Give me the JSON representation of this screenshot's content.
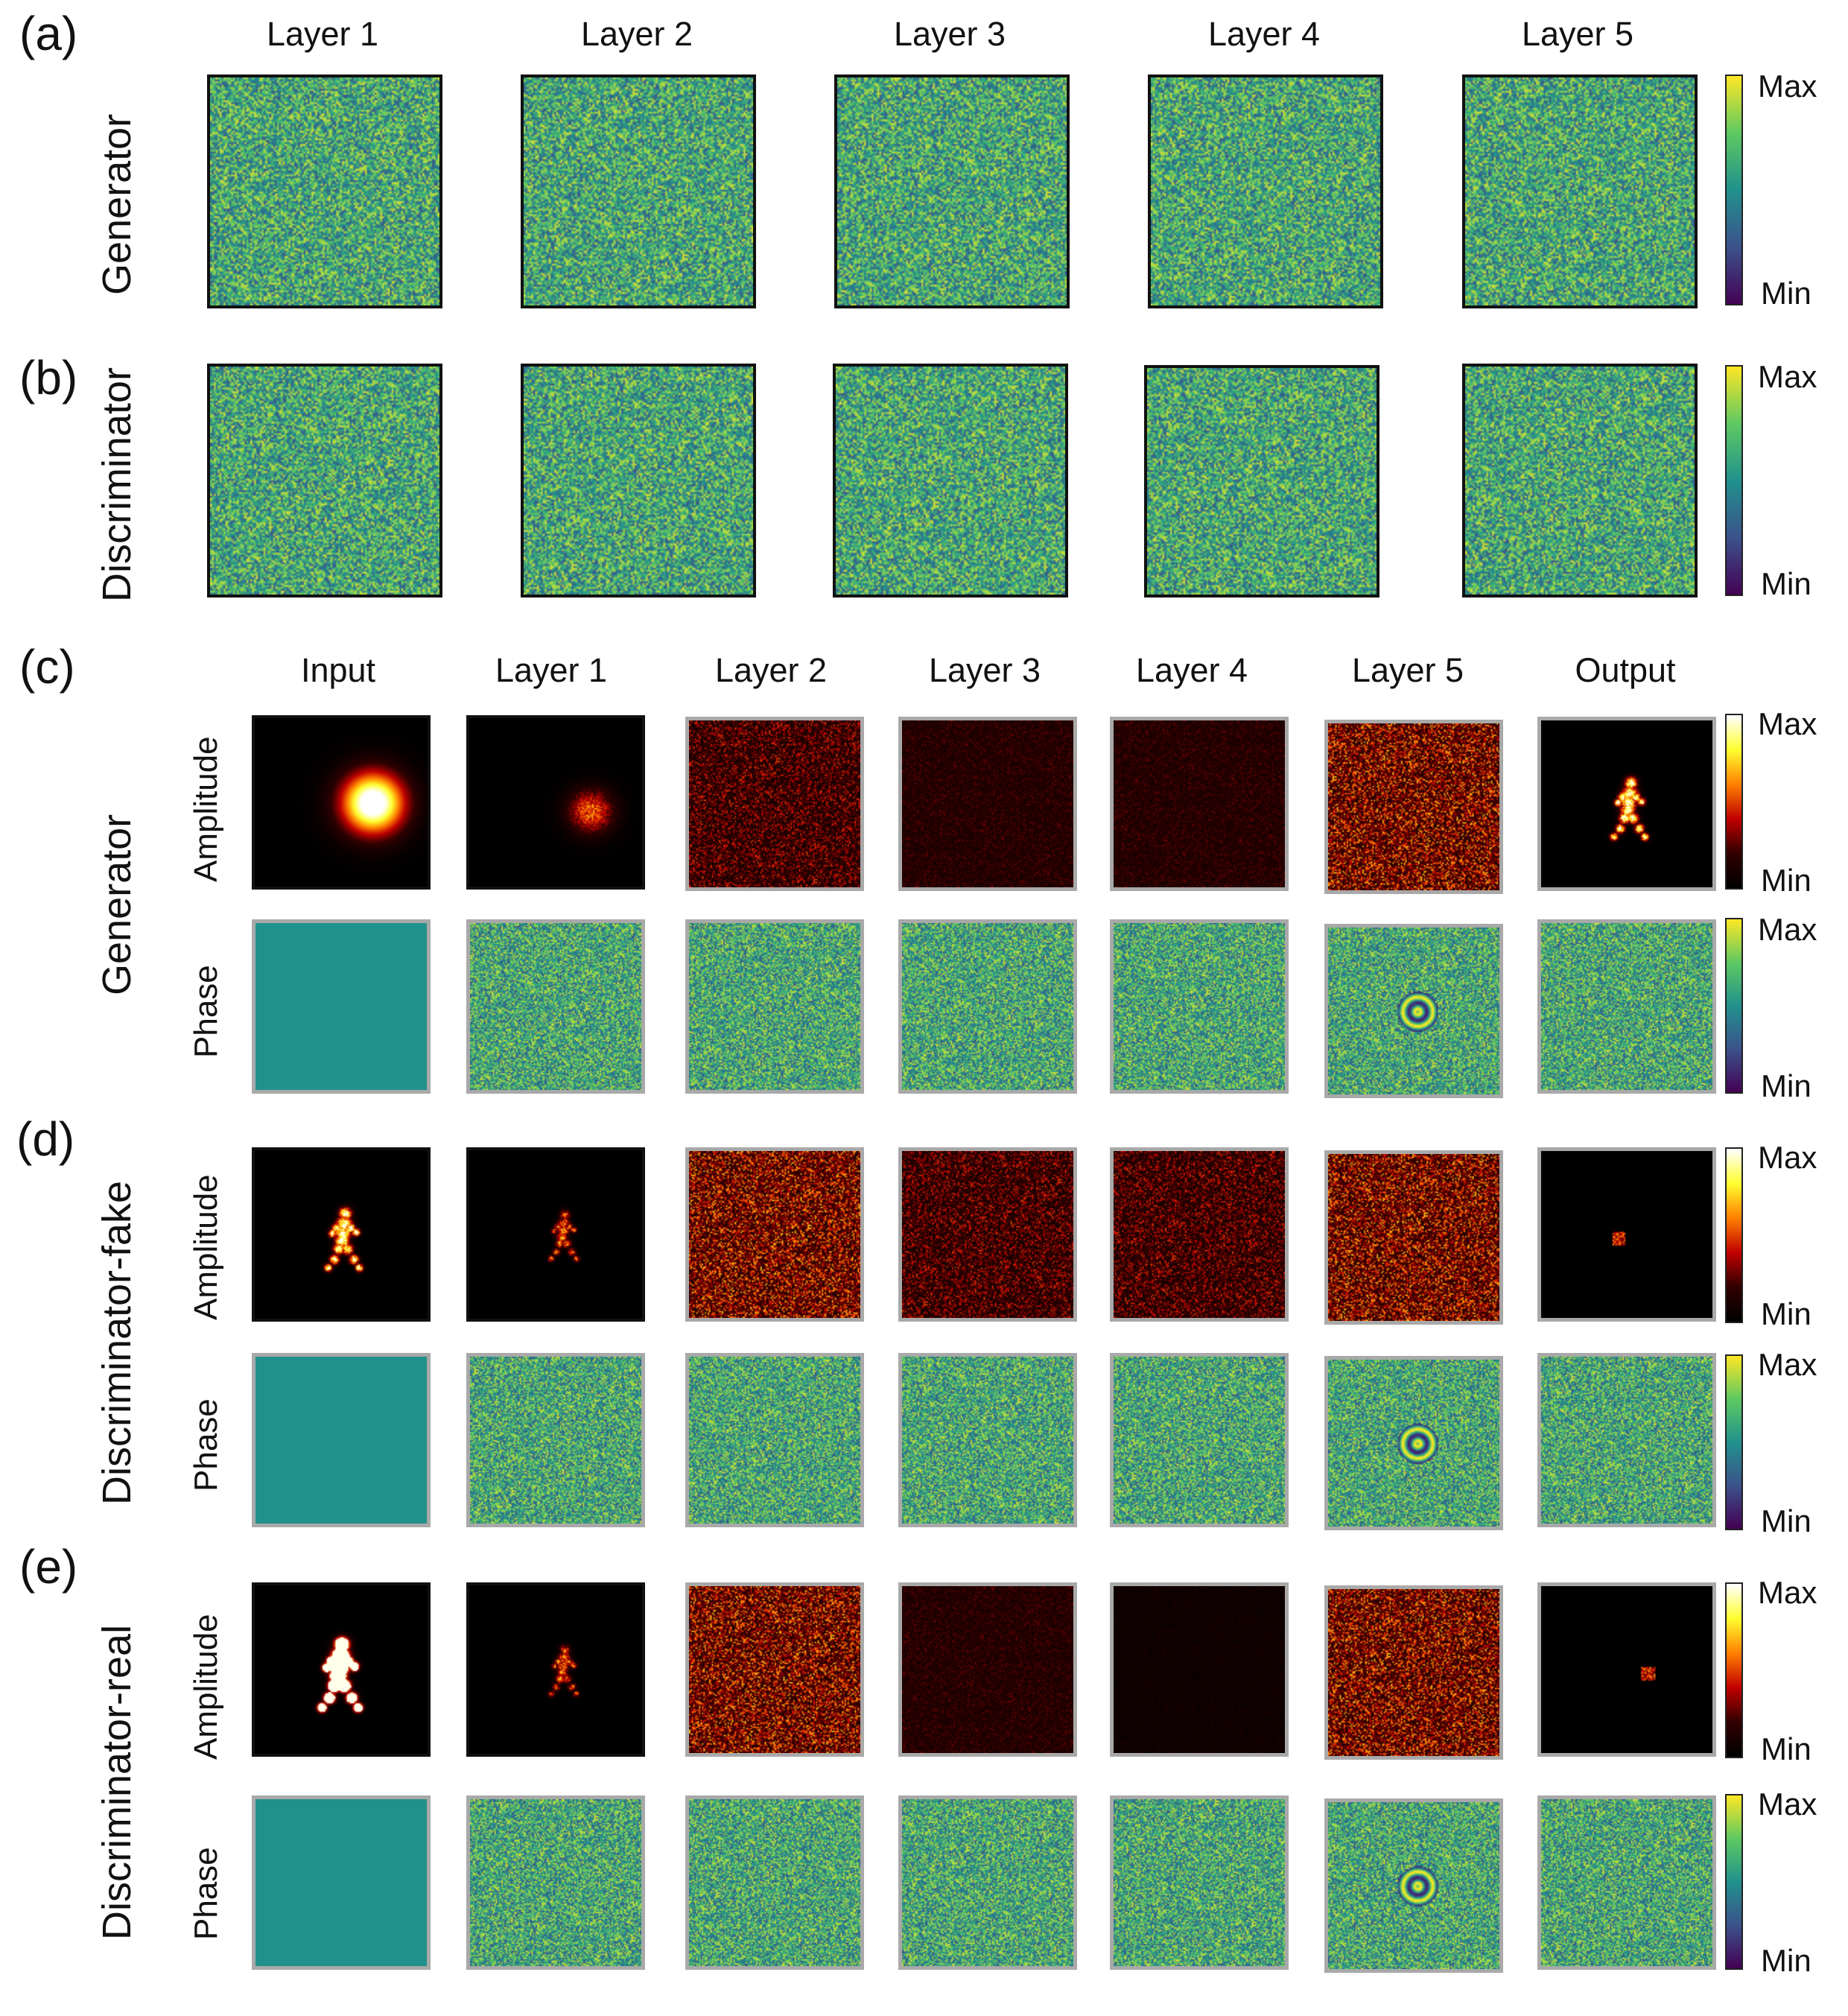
{
  "panels": {
    "a": {
      "label": "(a)",
      "row_label": "Generator"
    },
    "b": {
      "label": "(b)",
      "row_label": "Discriminator"
    },
    "c": {
      "label": "(c)",
      "row_label": "Generator"
    },
    "d": {
      "label": "(d)",
      "row_label": "Discriminator-fake"
    },
    "e": {
      "label": "(e)",
      "row_label": "Discriminator-real"
    }
  },
  "top_columns": [
    "Layer 1",
    "Layer 2",
    "Layer 3",
    "Layer 4",
    "Layer 5"
  ],
  "bottom_columns": [
    "Input",
    "Layer 1",
    "Layer 2",
    "Layer 3",
    "Layer 4",
    "Layer 5",
    "Output"
  ],
  "sub_rows": {
    "amplitude": "Amplitude",
    "phase": "Phase"
  },
  "colorbar": {
    "max": "Max",
    "min": "Min"
  },
  "colormaps": {
    "phase": [
      "#440154",
      "#3b528b",
      "#21918c",
      "#5ec962",
      "#fde725"
    ],
    "amplitude": [
      "#000000",
      "#300000",
      "#c00000",
      "#ff8000",
      "#ffff30",
      "#ffffff"
    ],
    "uniform_phase": "#21918c"
  }
}
